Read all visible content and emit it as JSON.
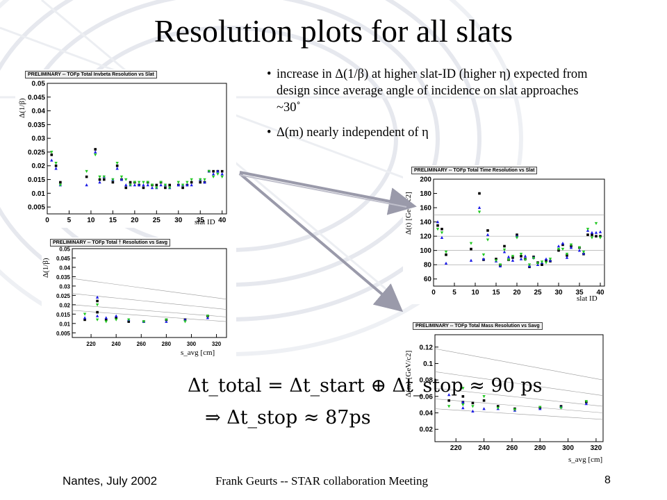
{
  "title": "Resolution plots for all slats",
  "bullets": [
    "increase in Δ(1/β)  at higher slat-ID (higher η) expected from design since average angle of incidence on slat approaches ~30˚",
    "Δ(m) nearly independent of η"
  ],
  "equation_line1": "Δt_total = Δt_start ⊕ Δt_stop ≈ 90 ps",
  "equation_line2": "⇒ Δt_stop ≈ 87ps",
  "footer": {
    "left": "Nantes, July  2002",
    "center": "Frank Geurts -- STAR collaboration Meeting",
    "page": "8"
  },
  "colors": {
    "series_black": "#000000",
    "series_blue": "#1a1ae6",
    "series_green": "#22c822",
    "arrow": "#9a9aaa",
    "gridline": "#999999"
  },
  "chart_data": [
    {
      "id": "invbeta_vs_slat",
      "type": "scatter",
      "banner": "PRELIMINARY -- TOFp Total Invbeta Resolution vs Slat",
      "ylabel": "Δ(1/β)",
      "xlabel": "slat ID",
      "xlim": [
        0,
        41
      ],
      "ylim": [
        0.0025,
        0.05
      ],
      "xticks": [
        0,
        5,
        10,
        15,
        20,
        25,
        30,
        35,
        40
      ],
      "yticks": [
        0.005,
        0.01,
        0.015,
        0.02,
        0.025,
        0.03,
        0.035,
        0.04,
        0.045,
        0.05
      ],
      "series": [
        {
          "color": "black",
          "x": [
            1,
            2,
            3,
            9,
            11,
            12,
            13,
            15,
            16,
            17,
            18,
            19,
            20,
            21,
            22,
            23,
            24,
            25,
            26,
            27,
            28,
            30,
            31,
            32,
            33,
            35,
            36,
            37,
            38,
            39,
            40
          ],
          "y": [
            0.024,
            0.02,
            0.014,
            0.016,
            0.026,
            0.015,
            0.015,
            0.014,
            0.02,
            0.015,
            0.012,
            0.014,
            0.014,
            0.013,
            0.012,
            0.014,
            0.013,
            0.013,
            0.014,
            0.012,
            0.013,
            0.013,
            0.012,
            0.013,
            0.014,
            0.014,
            0.014,
            0.018,
            0.018,
            0.018,
            0.018
          ]
        },
        {
          "color": "blue",
          "x": [
            1,
            2,
            3,
            9,
            11,
            12,
            13,
            15,
            16,
            17,
            18,
            19,
            20,
            21,
            22,
            23,
            24,
            25,
            26,
            27,
            28,
            30,
            31,
            32,
            33,
            35,
            36,
            37,
            38,
            39,
            40
          ],
          "y": [
            0.022,
            0.019,
            0.013,
            0.013,
            0.025,
            0.014,
            0.016,
            0.015,
            0.019,
            0.015,
            0.013,
            0.013,
            0.013,
            0.013,
            0.013,
            0.013,
            0.012,
            0.012,
            0.013,
            0.013,
            0.012,
            0.013,
            0.013,
            0.013,
            0.013,
            0.015,
            0.014,
            0.018,
            0.017,
            0.018,
            0.017
          ]
        },
        {
          "color": "green",
          "x": [
            1,
            2,
            3,
            9,
            11,
            12,
            13,
            15,
            16,
            17,
            18,
            19,
            20,
            21,
            22,
            23,
            24,
            25,
            26,
            27,
            28,
            30,
            31,
            32,
            33,
            35,
            36,
            37,
            38,
            39,
            40
          ],
          "y": [
            0.025,
            0.021,
            0.013,
            0.018,
            0.024,
            0.016,
            0.016,
            0.015,
            0.021,
            0.016,
            0.015,
            0.013,
            0.014,
            0.014,
            0.014,
            0.014,
            0.013,
            0.012,
            0.014,
            0.013,
            0.012,
            0.014,
            0.013,
            0.014,
            0.015,
            0.015,
            0.015,
            0.018,
            0.016,
            0.017,
            0.016
          ]
        }
      ]
    },
    {
      "id": "invbeta_vs_savg",
      "type": "scatter",
      "banner": "PRELIMINARY -- TOFp Total † Resolution vs Savg",
      "ylabel": "Δ(1/β)",
      "xlabel": "s_avg [cm]",
      "xlim": [
        205,
        328
      ],
      "ylim": [
        0.0025,
        0.05
      ],
      "xticks": [
        220,
        240,
        260,
        280,
        300,
        320
      ],
      "yticks": [
        0.005,
        0.01,
        0.015,
        0.02,
        0.025,
        0.03,
        0.035,
        0.04,
        0.045,
        0.05
      ],
      "curves": [
        [
          0.034,
          0.023
        ],
        [
          0.026,
          0.0175
        ],
        [
          0.02,
          0.0135
        ],
        [
          0.017,
          0.011
        ]
      ],
      "series": [
        {
          "color": "black",
          "x": [
            215,
            225,
            225,
            232,
            240,
            250,
            262,
            280,
            295,
            313
          ],
          "y": [
            0.012,
            0.022,
            0.016,
            0.012,
            0.013,
            0.011,
            0.011,
            0.012,
            0.012,
            0.014
          ]
        },
        {
          "color": "blue",
          "x": [
            215,
            225,
            225,
            232,
            240,
            250,
            262,
            280,
            295,
            313
          ],
          "y": [
            0.013,
            0.024,
            0.014,
            0.013,
            0.014,
            0.012,
            0.011,
            0.011,
            0.012,
            0.013
          ]
        },
        {
          "color": "green",
          "x": [
            215,
            225,
            225,
            232,
            240,
            250,
            262,
            280,
            295,
            313
          ],
          "y": [
            0.015,
            0.02,
            0.012,
            0.011,
            0.012,
            0.012,
            0.011,
            0.012,
            0.011,
            0.014
          ]
        }
      ]
    },
    {
      "id": "time_vs_slat",
      "type": "scatter",
      "banner": "PRELIMINARY -- TOFp Total Time Resolution vs Slat",
      "ylabel": "Δ(t)  [GeV/c2]",
      "xlabel": "slat ID",
      "xlim": [
        0,
        41
      ],
      "ylim": [
        50,
        200
      ],
      "xticks": [
        0,
        5,
        10,
        15,
        20,
        25,
        30,
        35,
        40
      ],
      "yticks": [
        60,
        80,
        100,
        120,
        140,
        160,
        180,
        200
      ],
      "hlines": [
        80,
        100,
        120,
        150
      ],
      "series": [
        {
          "color": "black",
          "x": [
            1,
            2,
            3,
            9,
            11,
            12,
            13,
            15,
            16,
            17,
            18,
            19,
            20,
            21,
            22,
            23,
            24,
            25,
            26,
            27,
            28,
            30,
            31,
            32,
            33,
            35,
            36,
            37,
            38,
            39,
            40
          ],
          "y": [
            135,
            130,
            94,
            102,
            180,
            87,
            128,
            88,
            79,
            106,
            87,
            90,
            122,
            92,
            88,
            77,
            91,
            83,
            80,
            86,
            85,
            100,
            108,
            93,
            106,
            104,
            95,
            122,
            122,
            120,
            120
          ]
        },
        {
          "color": "blue",
          "x": [
            1,
            2,
            3,
            9,
            11,
            12,
            13,
            15,
            16,
            17,
            18,
            19,
            20,
            21,
            22,
            23,
            24,
            25,
            26,
            27,
            28,
            30,
            31,
            32,
            33,
            35,
            36,
            37,
            38,
            39,
            40
          ],
          "y": [
            140,
            118,
            82,
            86,
            160,
            88,
            122,
            85,
            78,
            98,
            91,
            86,
            120,
            88,
            92,
            78,
            90,
            80,
            83,
            88,
            86,
            106,
            110,
            90,
            104,
            100,
            96,
            128,
            125,
            125,
            126
          ]
        },
        {
          "color": "green",
          "x": [
            1,
            2,
            3,
            9,
            11,
            12,
            13,
            15,
            16,
            17,
            18,
            19,
            20,
            21,
            22,
            23,
            24,
            25,
            26,
            27,
            28,
            30,
            31,
            32,
            33,
            35,
            36,
            37,
            38,
            39,
            40
          ],
          "y": [
            130,
            125,
            98,
            110,
            154,
            94,
            115,
            86,
            80,
            101,
            87,
            92,
            118,
            95,
            87,
            80,
            89,
            82,
            84,
            83,
            88,
            102,
            102,
            95,
            108,
            104,
            98,
            130,
            118,
            138,
            118
          ]
        }
      ]
    },
    {
      "id": "mass_vs_savg",
      "type": "scatter",
      "banner": "PRELIMINARY -- TOFp Total Mass Resolution vs Savg",
      "ylabel": "Δ(m)  [GeV/c2]",
      "xlabel": "s_avg [cm]",
      "xlim": [
        205,
        325
      ],
      "ylim": [
        0.005,
        0.135
      ],
      "xticks": [
        220,
        240,
        260,
        280,
        300,
        320
      ],
      "yticks": [
        0.02,
        0.04,
        0.06,
        0.08,
        0.1,
        0.12
      ],
      "curves": [
        [
          0.118,
          0.08
        ],
        [
          0.09,
          0.061
        ],
        [
          0.07,
          0.048
        ],
        [
          0.057,
          0.04
        ],
        [
          0.045,
          0.032
        ]
      ],
      "series": [
        {
          "color": "black",
          "x": [
            215,
            225,
            225,
            232,
            240,
            250,
            262,
            280,
            295,
            313
          ],
          "y": [
            0.055,
            0.053,
            0.06,
            0.052,
            0.055,
            0.048,
            0.045,
            0.046,
            0.048,
            0.053
          ]
        },
        {
          "color": "blue",
          "x": [
            215,
            225,
            225,
            232,
            240,
            250,
            262,
            280,
            295,
            313
          ],
          "y": [
            0.062,
            0.046,
            0.053,
            0.042,
            0.045,
            0.045,
            0.043,
            0.045,
            0.047,
            0.051
          ]
        },
        {
          "color": "green",
          "x": [
            215,
            225,
            225,
            232,
            240,
            250,
            262,
            280,
            295,
            313
          ],
          "y": [
            0.048,
            0.07,
            0.05,
            0.048,
            0.06,
            0.046,
            0.044,
            0.047,
            0.046,
            0.054
          ]
        }
      ]
    }
  ]
}
